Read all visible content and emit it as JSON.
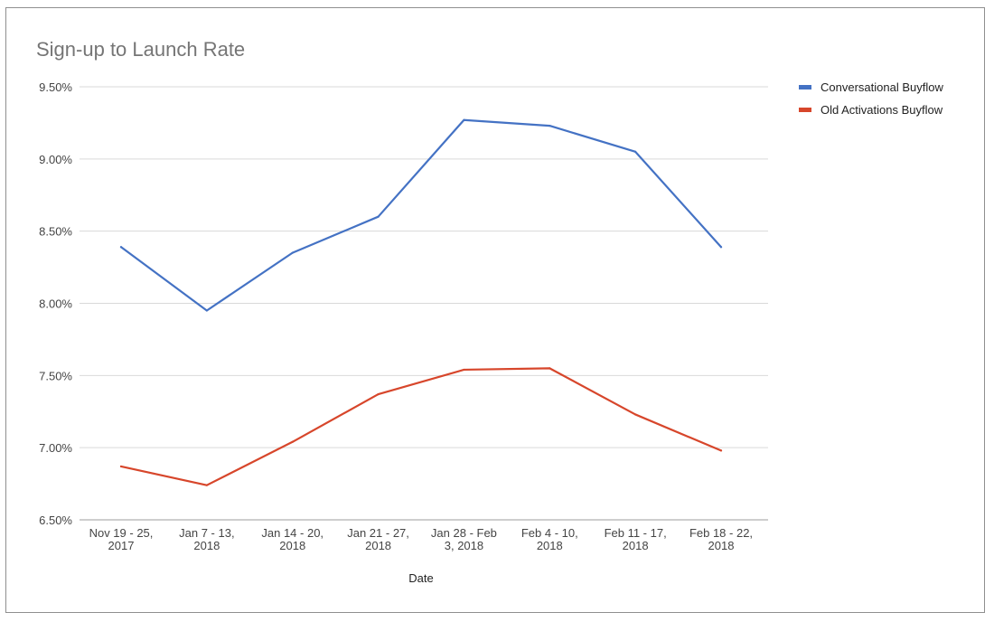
{
  "chart_data": {
    "type": "line",
    "title": "Sign-up to Launch Rate",
    "xlabel": "Date",
    "ylabel": "",
    "categories": [
      [
        "Nov 19 - 25,",
        "2017"
      ],
      [
        "Jan 7 - 13,",
        "2018"
      ],
      [
        "Jan 14 - 20,",
        "2018"
      ],
      [
        "Jan 21 - 27,",
        "2018"
      ],
      [
        "Jan 28 - Feb",
        "3, 2018"
      ],
      [
        "Feb 4 - 10,",
        "2018"
      ],
      [
        "Feb 11 - 17,",
        "2018"
      ],
      [
        "Feb 18 - 22,",
        "2018"
      ]
    ],
    "ylim": [
      6.5,
      9.5
    ],
    "yticks": [
      {
        "value": 9.5,
        "label": "9.50%"
      },
      {
        "value": 9.0,
        "label": "9.00%"
      },
      {
        "value": 8.5,
        "label": "8.50%"
      },
      {
        "value": 8.0,
        "label": "8.00%"
      },
      {
        "value": 7.5,
        "label": "7.50%"
      },
      {
        "value": 7.0,
        "label": "7.00%"
      },
      {
        "value": 6.5,
        "label": "6.50%"
      }
    ],
    "grid": true,
    "legend_position": "top-right",
    "series": [
      {
        "name": "Conversational Buyflow",
        "color": "#4472c4",
        "values": [
          8.39,
          7.95,
          8.35,
          8.6,
          9.27,
          9.23,
          9.05,
          8.39
        ]
      },
      {
        "name": "Old Activations Buyflow",
        "color": "#d7462b",
        "values": [
          6.87,
          6.74,
          7.04,
          7.37,
          7.54,
          7.55,
          7.23,
          6.98
        ]
      }
    ]
  }
}
